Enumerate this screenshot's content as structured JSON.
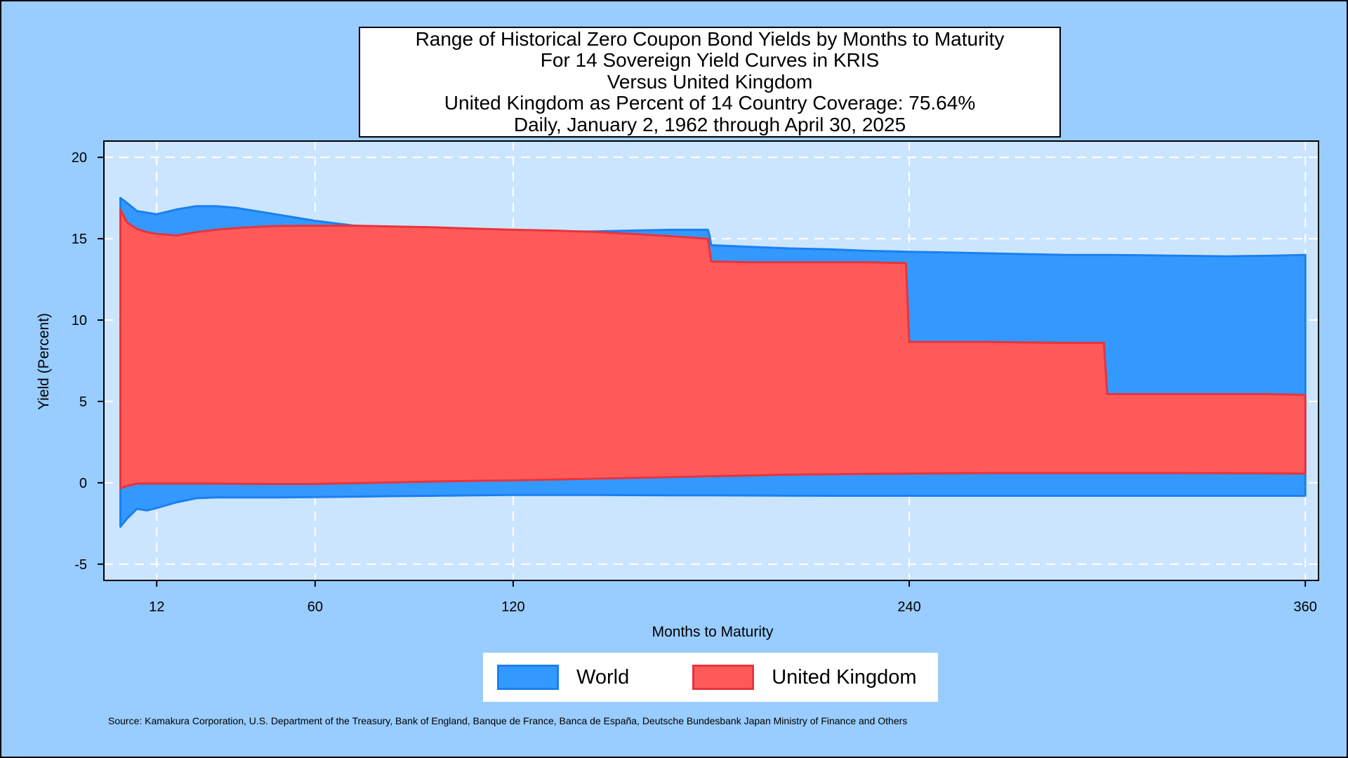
{
  "chart_data": {
    "type": "area",
    "title": [
      "Range of Historical Zero Coupon Bond Yields by Months to Maturity",
      "For 14 Sovereign Yield Curves in KRIS",
      "Versus United Kingdom",
      "United Kingdom as Percent of 14 Country Coverage: 75.64%",
      "Daily, January 2, 1962 through April 30, 2025"
    ],
    "xlabel": "Months to Maturity",
    "ylabel": "Yield (Percent)",
    "xlim": [
      -4,
      364
    ],
    "ylim": [
      -6,
      21
    ],
    "xticks": [
      12,
      60,
      120,
      240,
      360
    ],
    "yticks": [
      -5,
      0,
      5,
      10,
      15,
      20
    ],
    "grid": true,
    "legend_position": "bottom",
    "series": [
      {
        "name": "World",
        "color": "#3399ff",
        "edge_color": "#1a80f0",
        "x": [
          1,
          3,
          6,
          9,
          12,
          18,
          24,
          30,
          36,
          48,
          60,
          72,
          84,
          96,
          108,
          120,
          132,
          144,
          156,
          168,
          179,
          179.5,
          180,
          192,
          204,
          216,
          228,
          240,
          252,
          264,
          276,
          288,
          300,
          312,
          324,
          336,
          348,
          360
        ],
        "upper": [
          17.5,
          17.2,
          16.7,
          16.6,
          16.5,
          16.8,
          17.0,
          17.0,
          16.9,
          16.5,
          16.1,
          15.8,
          15.6,
          15.5,
          15.5,
          15.5,
          15.45,
          15.45,
          15.5,
          15.55,
          15.55,
          15.2,
          14.6,
          14.5,
          14.4,
          14.35,
          14.25,
          14.2,
          14.15,
          14.1,
          14.05,
          14.0,
          14.0,
          13.98,
          13.95,
          13.92,
          13.95,
          14.0
        ],
        "lower": [
          -2.7,
          -2.2,
          -1.6,
          -1.7,
          -1.55,
          -1.2,
          -0.95,
          -0.9,
          -0.9,
          -0.9,
          -0.88,
          -0.85,
          -0.82,
          -0.8,
          -0.77,
          -0.75,
          -0.75,
          -0.75,
          -0.76,
          -0.77,
          -0.77,
          -0.77,
          -0.77,
          -0.78,
          -0.79,
          -0.8,
          -0.8,
          -0.8,
          -0.8,
          -0.8,
          -0.8,
          -0.8,
          -0.8,
          -0.8,
          -0.8,
          -0.8,
          -0.8,
          -0.8
        ]
      },
      {
        "name": "United Kingdom",
        "color": "#ff5a5a",
        "edge_color": "#e8343c",
        "x": [
          1,
          3,
          6,
          9,
          12,
          18,
          24,
          30,
          36,
          48,
          60,
          72,
          84,
          96,
          108,
          120,
          132,
          144,
          156,
          168,
          179,
          180,
          192,
          204,
          216,
          228,
          239,
          240,
          252,
          264,
          276,
          288,
          299,
          300,
          312,
          324,
          336,
          348,
          360
        ],
        "upper": [
          16.8,
          16.0,
          15.6,
          15.4,
          15.3,
          15.2,
          15.4,
          15.55,
          15.65,
          15.78,
          15.8,
          15.8,
          15.75,
          15.7,
          15.62,
          15.55,
          15.5,
          15.42,
          15.3,
          15.15,
          15.0,
          13.6,
          13.55,
          13.55,
          13.55,
          13.55,
          13.5,
          8.65,
          8.65,
          8.65,
          8.62,
          8.6,
          8.6,
          5.45,
          5.45,
          5.45,
          5.45,
          5.45,
          5.4
        ],
        "lower": [
          -0.35,
          -0.2,
          -0.05,
          -0.05,
          -0.05,
          -0.05,
          -0.05,
          -0.05,
          -0.06,
          -0.07,
          -0.07,
          -0.02,
          0.03,
          0.08,
          0.12,
          0.15,
          0.2,
          0.25,
          0.3,
          0.35,
          0.4,
          0.4,
          0.45,
          0.5,
          0.52,
          0.55,
          0.56,
          0.57,
          0.58,
          0.6,
          0.6,
          0.6,
          0.6,
          0.6,
          0.6,
          0.6,
          0.59,
          0.58,
          0.57
        ]
      }
    ]
  },
  "source_note": "Source: Kamakura Corporation, U.S. Department of the Treasury, Bank of England, Banque de France, Banca de España, Deutsche Bundesbank Japan Ministry of Finance and Others",
  "colors": {
    "page_background": "#99ccff",
    "plot_background": "#cce5ff",
    "grid": "#ffffff"
  }
}
